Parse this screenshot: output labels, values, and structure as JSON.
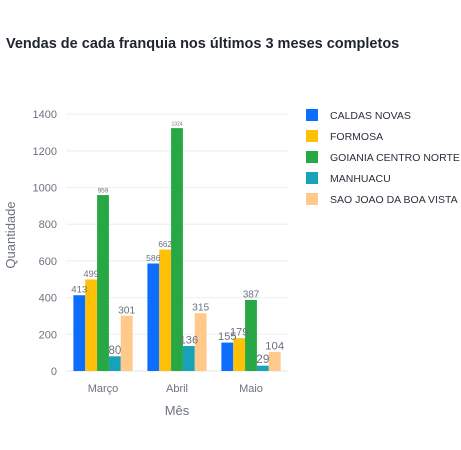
{
  "chart_data": {
    "type": "bar",
    "title": "Vendas de cada franquia nos últimos 3 meses completos",
    "xlabel": "Mês",
    "ylabel": "Quantidade",
    "categories": [
      "Março",
      "Abril",
      "Maio"
    ],
    "ylim": [
      0,
      1450
    ],
    "yticks": [
      0,
      200,
      400,
      600,
      800,
      1000,
      1200,
      1400
    ],
    "grid": true,
    "legend_position": "right",
    "series": [
      {
        "name": "CALDAS NOVAS",
        "color": "#0d6efd",
        "values": [
          413,
          586,
          155
        ],
        "labels": [
          "413",
          "586",
          "155"
        ]
      },
      {
        "name": "FORMOSA",
        "color": "#ffc107",
        "values": [
          499,
          662,
          179
        ],
        "labels": [
          "499",
          "662",
          "179"
        ]
      },
      {
        "name": "GOIANIA CENTRO NORTE",
        "color": "#28a745",
        "values": [
          959,
          1324,
          387
        ],
        "labels": [
          "959",
          "1324",
          "387"
        ]
      },
      {
        "name": "MANHUACU",
        "color": "#17a2b8",
        "values": [
          80,
          136,
          29
        ],
        "labels": [
          "80",
          "136",
          "29"
        ]
      },
      {
        "name": "SAO JOAO DA BOA VISTA",
        "color": "#ffc98b",
        "values": [
          301,
          315,
          104
        ],
        "labels": [
          "301",
          "315",
          "104"
        ]
      }
    ]
  }
}
